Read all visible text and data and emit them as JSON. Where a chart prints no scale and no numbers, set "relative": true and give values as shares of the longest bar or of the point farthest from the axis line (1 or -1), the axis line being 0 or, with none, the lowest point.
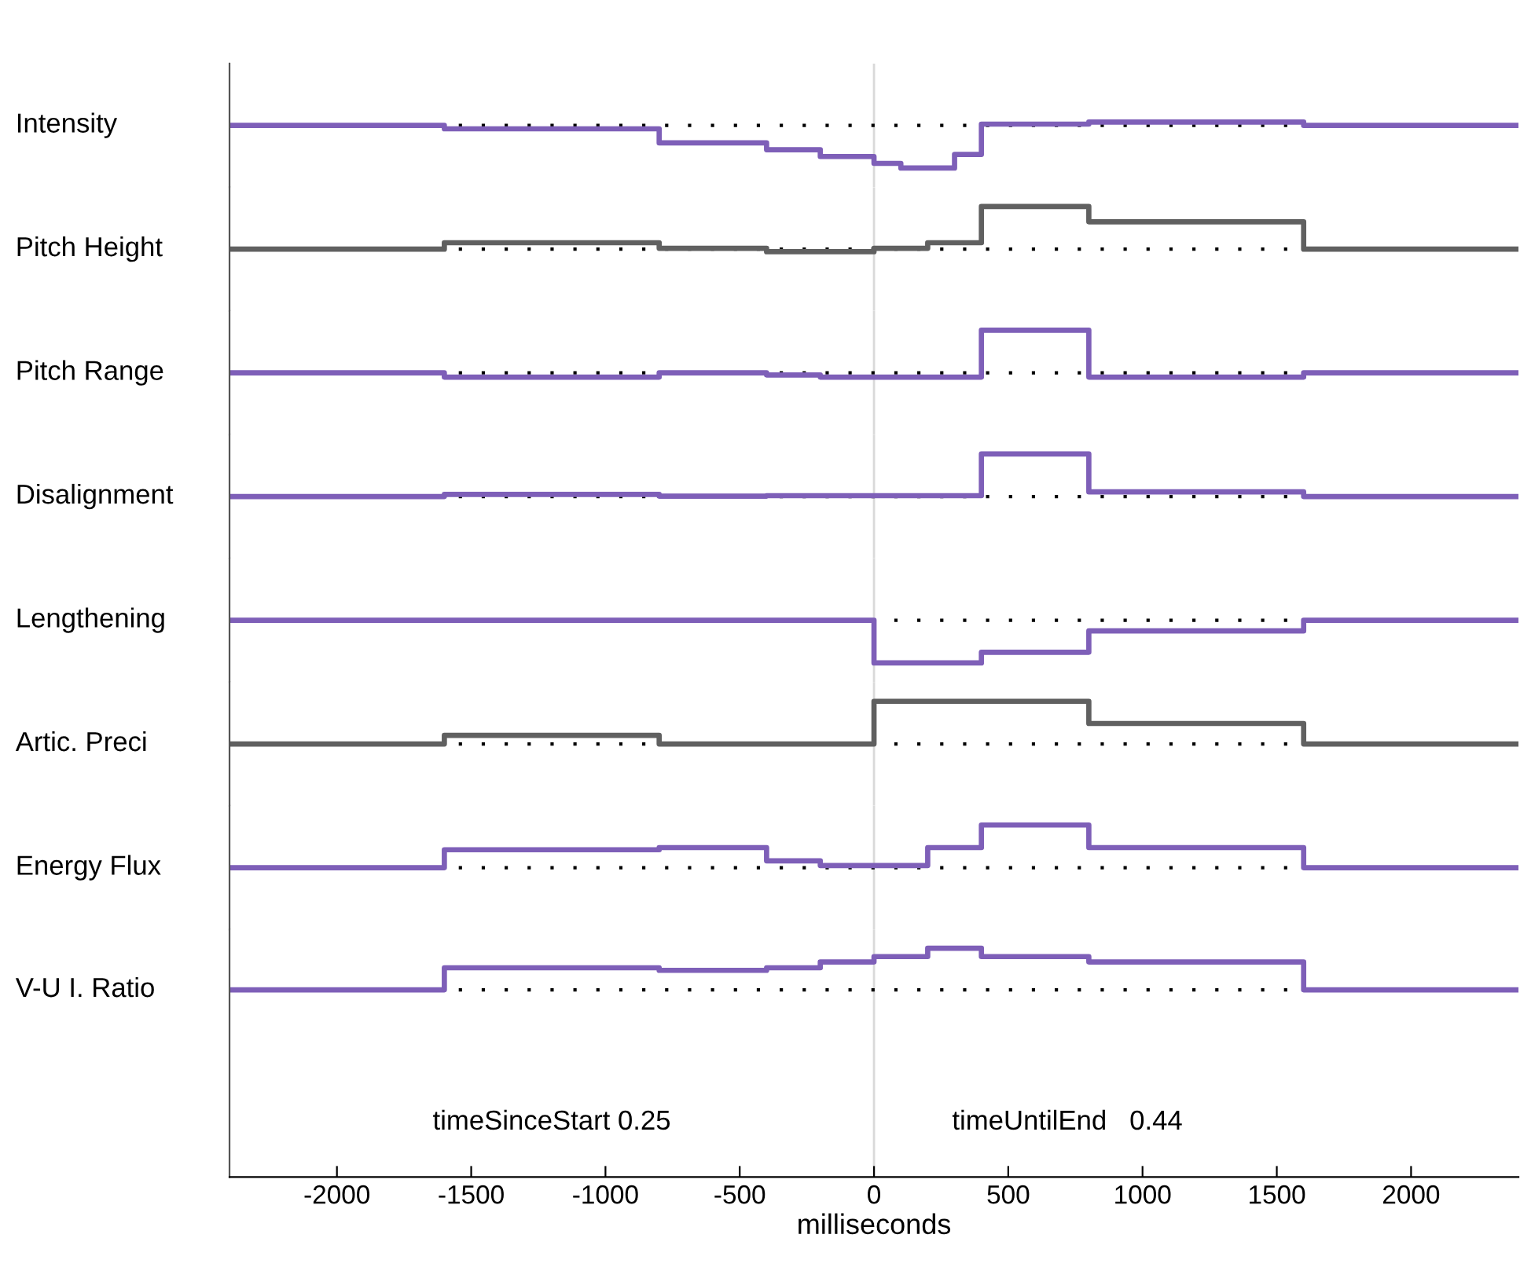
{
  "chart_data": [
    {
      "type": "step",
      "relative": true,
      "ylabel": "Intensity",
      "xlim": [
        -2400,
        2400
      ],
      "tick_labels": false,
      "ref_lines": [
        {
          "axis": "x",
          "value": 0,
          "color": "#d9d9d9"
        },
        {
          "axis": "y",
          "value": 0,
          "color": "#000000",
          "line_style": "dotted"
        }
      ],
      "x": [
        -2400,
        -1600,
        -800,
        -400,
        -200,
        0,
        100,
        300,
        400,
        800,
        1600,
        2400
      ],
      "series": [
        {
          "color": "#7e5fb8",
          "values": [
            0,
            -0.08,
            -0.41,
            -0.57,
            -0.73,
            -0.89,
            -1,
            -0.68,
            0.03,
            0.08,
            0,
            0
          ]
        }
      ]
    },
    {
      "type": "step",
      "relative": true,
      "ylabel": "Pitch Height",
      "xlim": [
        -2400,
        2400
      ],
      "tick_labels": false,
      "ref_lines": [
        {
          "axis": "x",
          "value": 0,
          "color": "#d9d9d9"
        },
        {
          "axis": "y",
          "value": 0,
          "color": "#000000",
          "line_style": "dotted"
        }
      ],
      "x": [
        -2400,
        -1600,
        -800,
        -400,
        0,
        200,
        400,
        800,
        1600,
        2400
      ],
      "series": [
        {
          "color": "#606060",
          "values": [
            0,
            0.15,
            0.02,
            -0.06,
            0.02,
            0.15,
            1,
            0.64,
            0,
            0
          ]
        }
      ]
    },
    {
      "type": "step",
      "relative": true,
      "ylabel": "Pitch Range",
      "xlim": [
        -2400,
        2400
      ],
      "tick_labels": false,
      "ref_lines": [
        {
          "axis": "x",
          "value": 0,
          "color": "#d9d9d9"
        },
        {
          "axis": "y",
          "value": 0,
          "color": "#000000",
          "line_style": "dotted"
        }
      ],
      "x": [
        -2400,
        -1600,
        -800,
        -400,
        -200,
        400,
        800,
        1600,
        2400
      ],
      "series": [
        {
          "color": "#7e5fb8",
          "values": [
            0,
            -0.1,
            0,
            -0.05,
            -0.1,
            1,
            -0.1,
            0,
            0
          ]
        }
      ]
    },
    {
      "type": "step",
      "relative": true,
      "ylabel": "Disalignment",
      "xlim": [
        -2400,
        2400
      ],
      "tick_labels": false,
      "ref_lines": [
        {
          "axis": "x",
          "value": 0,
          "color": "#d9d9d9"
        },
        {
          "axis": "y",
          "value": 0,
          "color": "#000000",
          "line_style": "dotted"
        }
      ],
      "x": [
        -2400,
        -1600,
        -800,
        -400,
        400,
        800,
        1600,
        2400
      ],
      "series": [
        {
          "color": "#7e5fb8",
          "values": [
            0,
            0.05,
            0.01,
            0.02,
            1,
            0.11,
            0,
            0
          ]
        }
      ]
    },
    {
      "type": "step",
      "relative": true,
      "ylabel": "Lengthening",
      "xlim": [
        -2400,
        2400
      ],
      "tick_labels": false,
      "ref_lines": [
        {
          "axis": "x",
          "value": 0,
          "color": "#d9d9d9"
        },
        {
          "axis": "y",
          "value": 0,
          "color": "#000000",
          "line_style": "dotted"
        }
      ],
      "x": [
        -2400,
        0,
        400,
        800,
        1600,
        2400
      ],
      "series": [
        {
          "color": "#7e5fb8",
          "values": [
            0,
            -1,
            -0.75,
            -0.25,
            0,
            0
          ]
        }
      ]
    },
    {
      "type": "step",
      "relative": true,
      "ylabel": "Artic. Preci",
      "xlim": [
        -2400,
        2400
      ],
      "tick_labels": false,
      "ref_lines": [
        {
          "axis": "x",
          "value": 0,
          "color": "#d9d9d9"
        },
        {
          "axis": "y",
          "value": 0,
          "color": "#000000",
          "line_style": "dotted"
        }
      ],
      "x": [
        -2400,
        -1600,
        -800,
        0,
        800,
        1600,
        2400
      ],
      "series": [
        {
          "color": "#606060",
          "values": [
            0,
            0.2,
            0,
            1,
            0.48,
            0,
            0
          ]
        }
      ]
    },
    {
      "type": "step",
      "relative": true,
      "ylabel": "Energy Flux",
      "xlim": [
        -2400,
        2400
      ],
      "tick_labels": false,
      "ref_lines": [
        {
          "axis": "x",
          "value": 0,
          "color": "#d9d9d9"
        },
        {
          "axis": "y",
          "value": 0,
          "color": "#000000",
          "line_style": "dotted"
        }
      ],
      "x": [
        -2400,
        -1600,
        -800,
        -400,
        -200,
        200,
        400,
        800,
        1600,
        2400
      ],
      "series": [
        {
          "color": "#7e5fb8",
          "values": [
            0,
            0.42,
            0.47,
            0.16,
            0.05,
            0.47,
            1,
            0.47,
            0,
            0
          ]
        }
      ]
    },
    {
      "type": "step",
      "relative": true,
      "ylabel": "V-U I. Ratio",
      "xlabel": "milliseconds",
      "xlim": [
        -2400,
        2400
      ],
      "xticks": [
        -2000,
        -1500,
        -1000,
        -500,
        0,
        500,
        1000,
        1500,
        2000
      ],
      "tick_labels": "x",
      "ref_lines": [
        {
          "axis": "x",
          "value": 0,
          "color": "#d9d9d9"
        },
        {
          "axis": "y",
          "value": 0,
          "color": "#000000",
          "line_style": "dotted"
        }
      ],
      "annotations": [
        "timeSinceStart 0.25",
        "timeUntilEnd   0.44"
      ],
      "x": [
        -2400,
        -1600,
        -800,
        -400,
        -200,
        0,
        200,
        400,
        800,
        1600,
        2400
      ],
      "series": [
        {
          "color": "#7e5fb8",
          "values": [
            0,
            0.53,
            0.47,
            0.53,
            0.67,
            0.8,
            1,
            0.8,
            0.67,
            0,
            0
          ]
        }
      ]
    }
  ]
}
